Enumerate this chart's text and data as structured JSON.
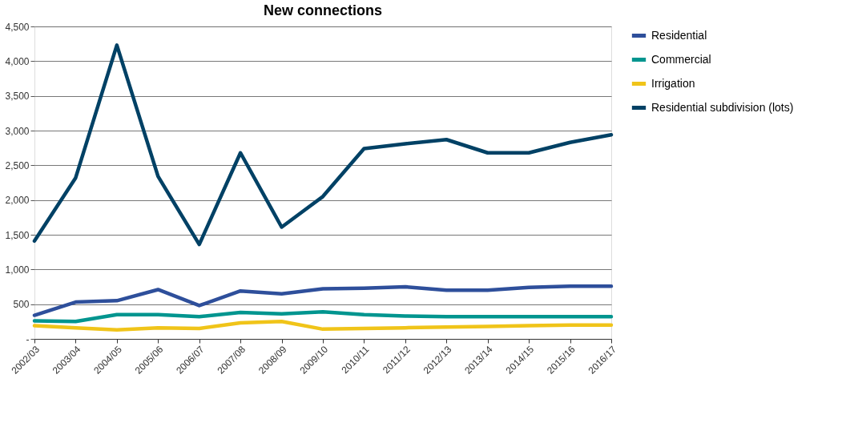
{
  "chart_data": {
    "type": "line",
    "title": "New connections",
    "categories": [
      "2002/03",
      "2003/04",
      "2004/05",
      "2005/06",
      "2006/07",
      "2007/08",
      "2008/09",
      "2009/10",
      "2010/11",
      "2011/12",
      "2012/13",
      "2013/14",
      "2014/15",
      "2015/16",
      "2016/17"
    ],
    "series": [
      {
        "name": "Residential",
        "color": "#2e4f9b",
        "values": [
          340,
          530,
          550,
          710,
          480,
          690,
          650,
          720,
          730,
          750,
          700,
          700,
          740,
          760,
          760
        ]
      },
      {
        "name": "Commercial",
        "color": "#00958f",
        "values": [
          260,
          250,
          350,
          350,
          320,
          380,
          360,
          390,
          350,
          330,
          320,
          320,
          320,
          320,
          320
        ]
      },
      {
        "name": "Irrigation",
        "color": "#f0c419",
        "values": [
          190,
          160,
          130,
          160,
          150,
          230,
          250,
          140,
          150,
          160,
          170,
          180,
          190,
          200,
          200
        ]
      },
      {
        "name": "Residential subdivision (lots)",
        "color": "#004165",
        "values": [
          1410,
          2320,
          4230,
          2340,
          1360,
          2680,
          1610,
          2050,
          2740,
          2810,
          2870,
          2680,
          2680,
          2830,
          2940
        ]
      }
    ],
    "ylim": [
      0,
      4500
    ],
    "yticks": [
      {
        "value": 0,
        "label": "-"
      },
      {
        "value": 500,
        "label": "500"
      },
      {
        "value": 1000,
        "label": "1,000"
      },
      {
        "value": 1500,
        "label": "1,500"
      },
      {
        "value": 2000,
        "label": "2,000"
      },
      {
        "value": 2500,
        "label": "2,500"
      },
      {
        "value": 3000,
        "label": "3,000"
      },
      {
        "value": 3500,
        "label": "3,500"
      },
      {
        "value": 4000,
        "label": "4,000"
      },
      {
        "value": 4500,
        "label": "4,500"
      }
    ],
    "grid": "y",
    "legend": "right",
    "marker": "none",
    "line_style": "solid"
  }
}
